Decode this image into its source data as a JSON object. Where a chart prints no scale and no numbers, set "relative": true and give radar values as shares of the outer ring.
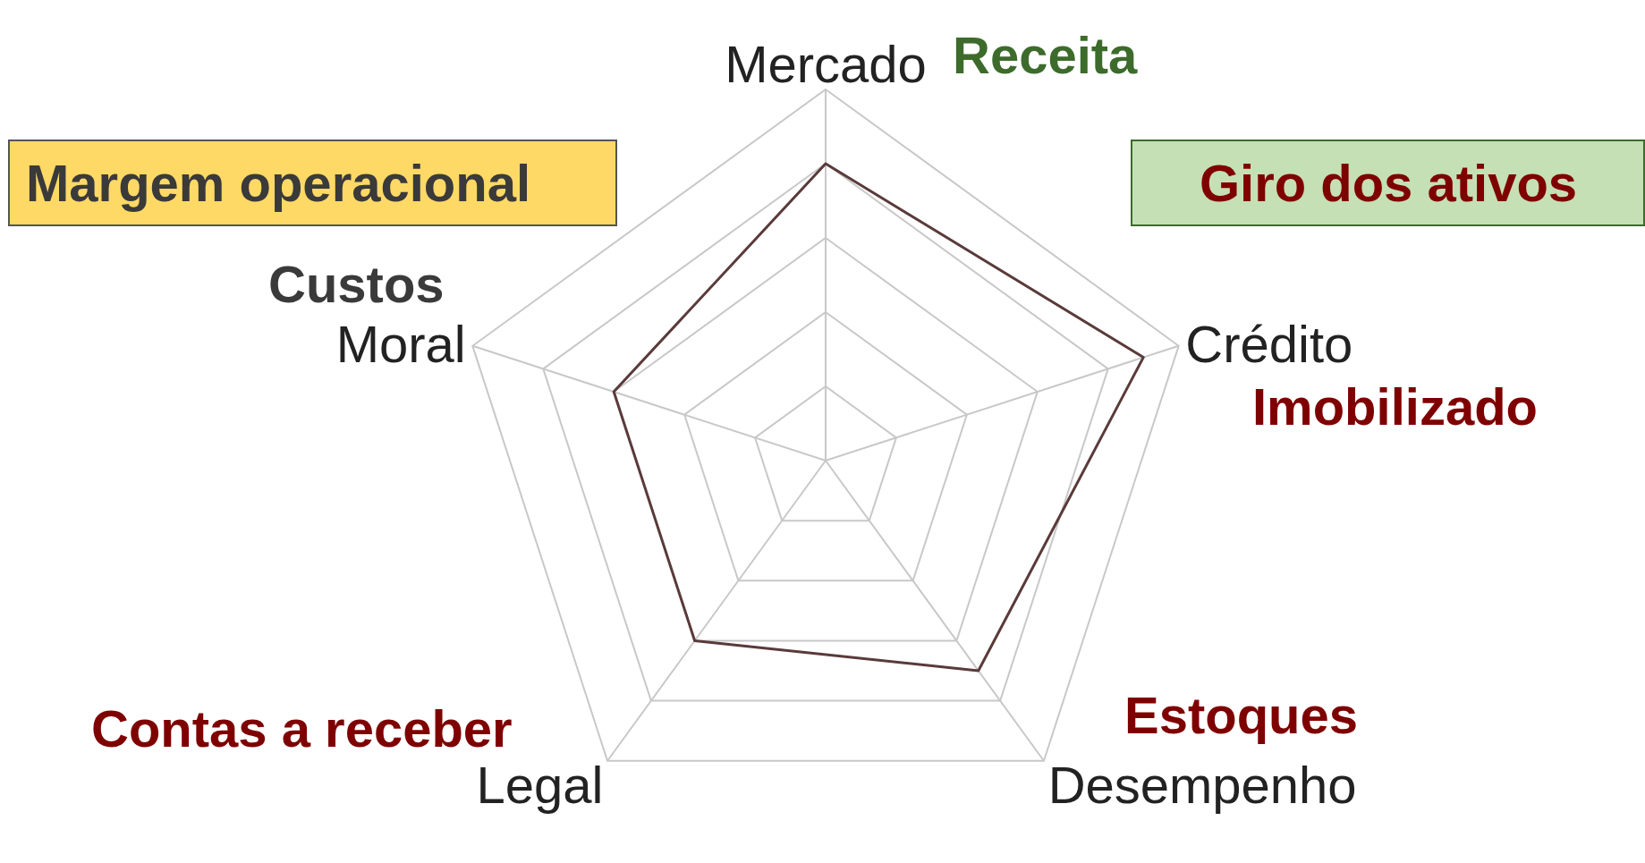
{
  "chart_data": {
    "type": "radar",
    "relative": true,
    "categories": [
      "Mercado",
      "Crédito",
      "Desempenho",
      "Legal",
      "Moral"
    ],
    "series": [
      {
        "color": "#5a3a3a",
        "values": [
          0.8,
          0.9,
          0.7,
          0.6,
          0.6
        ]
      }
    ],
    "grid": true,
    "annotations": [
      "Receita",
      "Giro dos ativos",
      "Imobilizado",
      "Estoques",
      "Contas a receber",
      "Custos",
      "Margem operacional"
    ]
  }
}
